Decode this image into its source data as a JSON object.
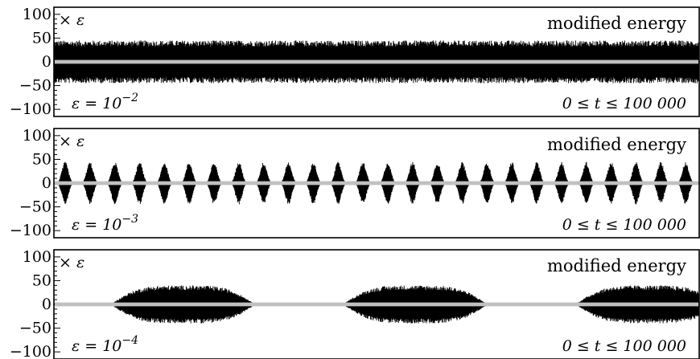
{
  "chart_data": [
    {
      "type": "line",
      "title": "modified energy",
      "scale_label": "× ε",
      "epsilon_label": "ε = 10",
      "epsilon_exp": "−2",
      "time_range_label": "0 ≤ t ≤ 100 000",
      "x_range": [
        0,
        100000
      ],
      "ylim": [
        -115,
        115
      ],
      "yticks": [
        100,
        50,
        0,
        -50,
        -100
      ],
      "ytick_labels": [
        "100",
        "50",
        "0",
        "−50",
        "−100"
      ],
      "grid": false,
      "series": [
        {
          "role": "oscillation",
          "color": "#000000",
          "envelope": {
            "kind": "uniform",
            "amplitude": 45,
            "beats": 0
          }
        },
        {
          "role": "modified-energy",
          "color": "#c0c0c0",
          "envelope": {
            "kind": "band",
            "amplitude": 4
          }
        }
      ]
    },
    {
      "type": "line",
      "title": "modified energy",
      "scale_label": "× ε",
      "epsilon_label": "ε = 10",
      "epsilon_exp": "−3",
      "time_range_label": "0 ≤ t ≤ 100 000",
      "x_range": [
        0,
        100000
      ],
      "ylim": [
        -115,
        115
      ],
      "yticks": [
        100,
        50,
        0,
        -50,
        -100
      ],
      "ytick_labels": [
        "100",
        "50",
        "0",
        "−50",
        "−100"
      ],
      "grid": false,
      "series": [
        {
          "role": "oscillation",
          "color": "#000000",
          "envelope": {
            "kind": "beats",
            "amplitude": 45,
            "beats": 26
          }
        },
        {
          "role": "modified-energy",
          "color": "#c0c0c0",
          "envelope": {
            "kind": "band",
            "amplitude": 4
          }
        }
      ]
    },
    {
      "type": "line",
      "title": "modified energy",
      "scale_label": "× ε",
      "epsilon_label": "ε = 10",
      "epsilon_exp": "−4",
      "time_range_label": "0 ≤ t ≤ 100 000",
      "x_range": [
        0,
        100000
      ],
      "ylim": [
        -115,
        115
      ],
      "yticks": [
        100,
        50,
        0,
        -50,
        -100
      ],
      "ytick_labels": [
        "100",
        "50",
        "0",
        "−50",
        "−100"
      ],
      "grid": false,
      "series": [
        {
          "role": "oscillation",
          "color": "#000000",
          "envelope": {
            "kind": "bursts",
            "amplitude": 40,
            "burst_centers": [
              20000,
              56000,
              92000
            ],
            "burst_halfwidth": 10000
          }
        },
        {
          "role": "modified-energy",
          "color": "#c0c0c0",
          "envelope": {
            "kind": "band",
            "amplitude": 4
          }
        }
      ]
    }
  ]
}
